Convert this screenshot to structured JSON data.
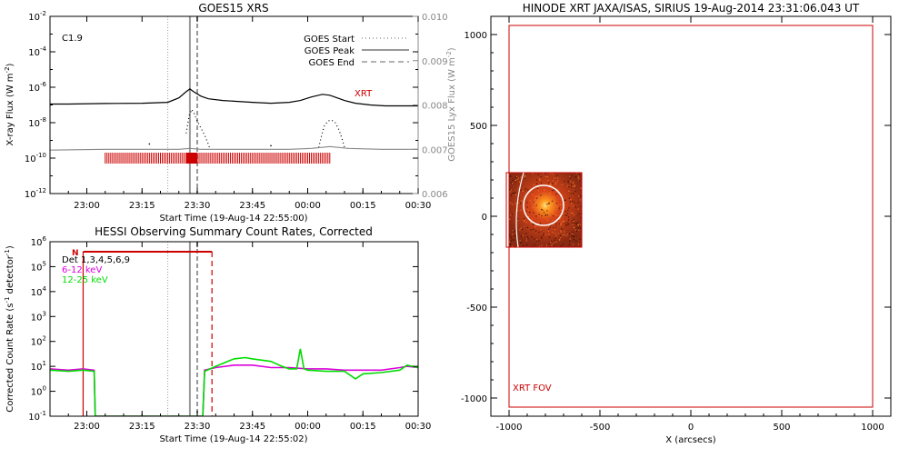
{
  "chart_data": [
    {
      "type": "line",
      "title": "GOES15 XRS",
      "xlabel": "Start Time (19-Aug-14 22:55:00)",
      "ylabel": "X-ray Flux (W m",
      "ylabel_sup": "-2",
      "ylabel_end": ")",
      "y2label": "GOES15 Lyx Flux (W m",
      "y2label_sup": "-2",
      "y2label_end": ")",
      "x_range_min": [
        -5,
        95
      ],
      "x_ticks": [
        {
          "t": 5,
          "label": "23:00"
        },
        {
          "t": 20,
          "label": "23:15"
        },
        {
          "t": 35,
          "label": "23:30"
        },
        {
          "t": 50,
          "label": "23:45"
        },
        {
          "t": 65,
          "label": "00:00"
        },
        {
          "t": 80,
          "label": "00:15"
        },
        {
          "t": 95,
          "label": "00:30"
        }
      ],
      "y_log_range": [
        -12,
        -2
      ],
      "y_ticks": [
        {
          "e": -2,
          "label": "10",
          "sup": "-2"
        },
        {
          "e": -4,
          "label": "10",
          "sup": "-4"
        },
        {
          "e": -6,
          "label": "10",
          "sup": "-6"
        },
        {
          "e": -8,
          "label": "10",
          "sup": "-8"
        },
        {
          "e": -10,
          "label": "10",
          "sup": "-10"
        },
        {
          "e": -12,
          "label": "10",
          "sup": "-12"
        }
      ],
      "y2_range": [
        0.006,
        0.01
      ],
      "y2_ticks": [
        "0.010",
        "0.009",
        "0.008",
        "0.007",
        "0.006"
      ],
      "class_label": "C1.9",
      "xrt_label": "XRT",
      "legend": [
        {
          "label": "GOES Start",
          "style": "dotted"
        },
        {
          "label": "GOES Peak",
          "style": "solid"
        },
        {
          "label": "GOES End",
          "style": "dashed"
        }
      ],
      "markers_min": {
        "start": 27,
        "peak": 33,
        "end": 35
      },
      "series": [
        {
          "color": "#000000",
          "x": [
            -5,
            0,
            10,
            20,
            27,
            30,
            32,
            33,
            34,
            36,
            38,
            42,
            46,
            50,
            55,
            60,
            63,
            66,
            69,
            71,
            73,
            75,
            78,
            82,
            86,
            90,
            95
          ],
          "y": [
            -6.95,
            -6.95,
            -6.92,
            -6.9,
            -6.85,
            -6.6,
            -6.25,
            -6.1,
            -6.25,
            -6.5,
            -6.65,
            -6.75,
            -6.8,
            -6.85,
            -6.9,
            -6.85,
            -6.75,
            -6.55,
            -6.4,
            -6.45,
            -6.6,
            -6.75,
            -6.9,
            -7.0,
            -7.05,
            -7.05,
            -7.05
          ]
        },
        {
          "color": "#000000",
          "style": "dotted",
          "x": [
            32,
            32.8,
            33.5,
            34.2,
            35,
            36,
            37,
            37.8,
            38.5
          ],
          "y": [
            -8.6,
            -7.6,
            -7.25,
            -7.5,
            -7.9,
            -8.3,
            -8.7,
            -9.1,
            -9.5
          ]
        },
        {
          "color": "#000000",
          "style": "dotted",
          "x": [
            68,
            68.8,
            69.5,
            70.5,
            71.5,
            72.5,
            73.5,
            74.3,
            75
          ],
          "y": [
            -9.4,
            -8.7,
            -8.2,
            -7.9,
            -7.85,
            -8.0,
            -8.4,
            -8.9,
            -9.4
          ]
        },
        {
          "color": "#888888",
          "x": [
            -5,
            10,
            30,
            33,
            36,
            60,
            66,
            71,
            76,
            85,
            95
          ],
          "y": [
            -9.55,
            -9.5,
            -9.5,
            -9.45,
            -9.5,
            -9.5,
            -9.45,
            -9.35,
            -9.45,
            -9.5,
            -9.5
          ]
        }
      ],
      "obs_bar": {
        "color": "#cc0000",
        "from_min": 10,
        "to_min": 71,
        "dense_from": 32,
        "dense_to": 35,
        "y_exp": -10
      }
    },
    {
      "type": "line",
      "title": "HESSI Observing Summary Count Rates, Corrected",
      "xlabel": "Start Time (19-Aug-14 22:55:02)",
      "ylabel": "Corrected Count Rate (s",
      "ylabel_sup": "-1",
      "ylabel_mid": " detector",
      "ylabel_sup2": "-1",
      "ylabel_end": ")",
      "x_range_min": [
        -5,
        95
      ],
      "x_ticks": [
        {
          "t": 5,
          "label": "23:00"
        },
        {
          "t": 20,
          "label": "23:15"
        },
        {
          "t": 35,
          "label": "23:30"
        },
        {
          "t": 50,
          "label": "23:45"
        },
        {
          "t": 65,
          "label": "00:00"
        },
        {
          "t": 80,
          "label": "00:15"
        },
        {
          "t": 95,
          "label": "00:30"
        }
      ],
      "y_log_range": [
        -1,
        6
      ],
      "y_ticks": [
        {
          "e": 6,
          "label": "10",
          "sup": "6"
        },
        {
          "e": 5,
          "label": "10",
          "sup": "5"
        },
        {
          "e": 4,
          "label": "10",
          "sup": "4"
        },
        {
          "e": 3,
          "label": "10",
          "sup": "3"
        },
        {
          "e": 2,
          "label": "10",
          "sup": "2"
        },
        {
          "e": 1,
          "label": "10",
          "sup": "1"
        },
        {
          "e": 0,
          "label": "10",
          "sup": "0"
        },
        {
          "e": -1,
          "label": "10",
          "sup": "-1"
        }
      ],
      "n_label": "N",
      "legend": [
        {
          "label": "Det 1,3,4,5,6,9",
          "color": "#000000"
        },
        {
          "label": "6-12 keV",
          "color": "#dd00dd"
        },
        {
          "label": "12-25 keV",
          "color": "#00dd00"
        }
      ],
      "markers_min": {
        "start": 27,
        "peak": 33,
        "end": 35
      },
      "red_lines_min": {
        "solid": 4,
        "dashed": 39
      },
      "red_line_top_exp": 5.6,
      "series": [
        {
          "name": "6-12 keV",
          "color": "#dd00dd",
          "x": [
            -5,
            0,
            4,
            7,
            7.3,
            36.5,
            37,
            40,
            45,
            50,
            55,
            60,
            65,
            70,
            75,
            80,
            85,
            90,
            92,
            95
          ],
          "y": [
            0.9,
            0.85,
            0.9,
            0.85,
            -1,
            -1,
            0.85,
            0.95,
            1.05,
            1.05,
            0.95,
            0.95,
            0.9,
            0.9,
            0.85,
            0.85,
            0.85,
            0.95,
            1.0,
            0.95
          ]
        },
        {
          "name": "12-25 keV",
          "color": "#00dd00",
          "x": [
            -5,
            0,
            4,
            7,
            7.3,
            36.5,
            37,
            40,
            45,
            48,
            50,
            55,
            58,
            60,
            62,
            63,
            64,
            65,
            70,
            75,
            78,
            80,
            85,
            90,
            92,
            95
          ],
          "y": [
            0.85,
            0.8,
            0.85,
            0.8,
            -1,
            -1,
            0.8,
            1.0,
            1.3,
            1.35,
            1.3,
            1.2,
            1.0,
            0.9,
            0.9,
            1.7,
            0.9,
            0.85,
            0.8,
            0.8,
            0.5,
            0.7,
            0.75,
            0.85,
            1.05,
            0.95
          ]
        }
      ]
    },
    {
      "type": "heatmap",
      "title": "HINODE XRT JAXA/ISAS, SIRIUS 19-Aug-2014 23:31:06.043 UT",
      "xlabel": "X (arcsecs)",
      "x_range": [
        -1100,
        1100
      ],
      "y_range": [
        -1100,
        1100
      ],
      "x_ticks": [
        "-1000",
        "-500",
        "0",
        "500",
        "1000"
      ],
      "y_ticks": [
        "1000",
        "500",
        "0",
        "-500",
        "-1000"
      ],
      "fov_label": "XRT FOV",
      "fov": {
        "x": [
          -1000,
          1000
        ],
        "y": [
          -1050,
          1050
        ]
      },
      "image_box": {
        "x": [
          -1000,
          -600
        ],
        "y": [
          -170,
          240
        ]
      },
      "circle": {
        "cx": -810,
        "cy": 60,
        "r": 110
      },
      "hot_spot": {
        "cx": -800,
        "cy": 60
      }
    }
  ]
}
